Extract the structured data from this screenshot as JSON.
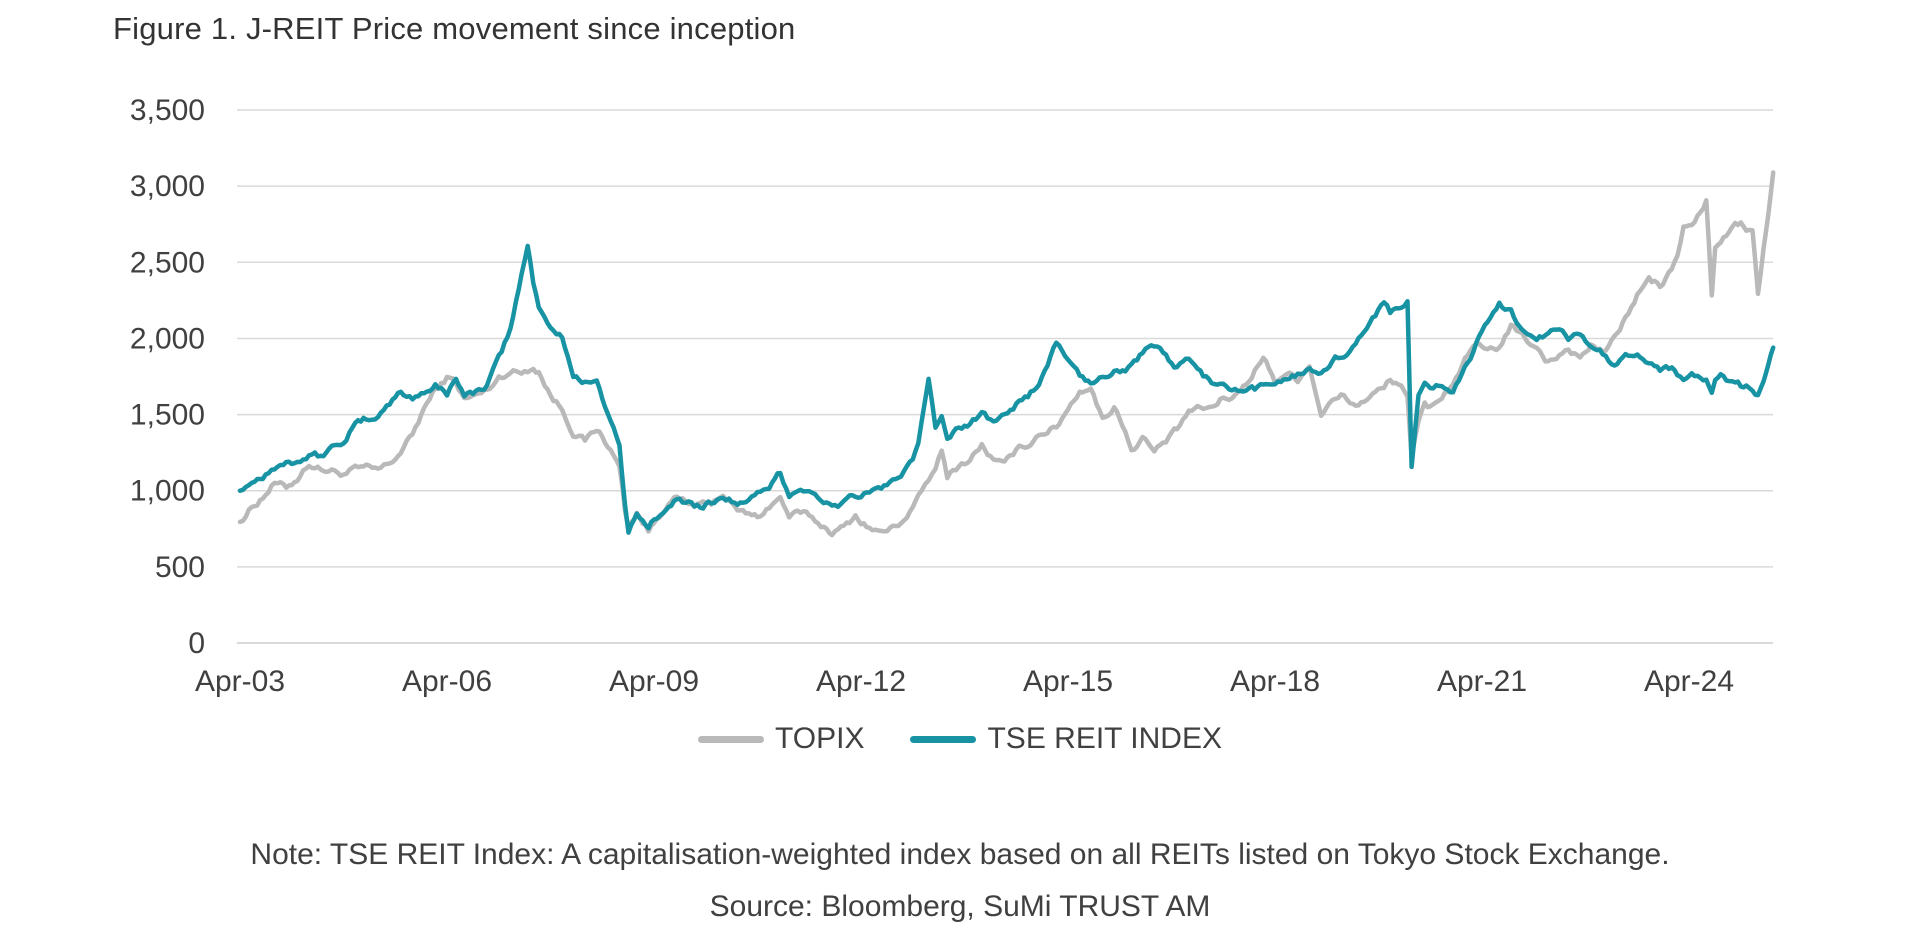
{
  "figure": {
    "title": "Figure 1. J-REIT Price movement since inception",
    "note": "Note: TSE REIT Index: A capitalisation-weighted index based on all REITs listed on Tokyo Stock Exchange.",
    "source": "Source: Bloomberg, SuMi TRUST AM"
  },
  "colors": {
    "grid": "#d9d9d9",
    "axis_text": "#404040",
    "title_text": "#333333",
    "background": "#ffffff"
  },
  "chart_data": {
    "type": "line",
    "title": "Figure 1. J-REIT Price movement since inception",
    "xlabel": "",
    "ylabel": "",
    "grid": "horizontal",
    "legend_position": "bottom",
    "ylim": [
      0,
      3500
    ],
    "xlim": [
      2003.25,
      2025.5
    ],
    "y_ticks": [
      {
        "label": "0",
        "v": 0
      },
      {
        "label": "500",
        "v": 500
      },
      {
        "label": "1,000",
        "v": 1000
      },
      {
        "label": "1,500",
        "v": 1500
      },
      {
        "label": "2,000",
        "v": 2000
      },
      {
        "label": "2,500",
        "v": 2500
      },
      {
        "label": "3,000",
        "v": 3000
      },
      {
        "label": "3,500",
        "v": 3500
      }
    ],
    "x_ticks": [
      {
        "label": "Apr-03",
        "t": 2003.25
      },
      {
        "label": "Apr-06",
        "t": 2006.25
      },
      {
        "label": "Apr-09",
        "t": 2009.25
      },
      {
        "label": "Apr-12",
        "t": 2012.25
      },
      {
        "label": "Apr-15",
        "t": 2015.25
      },
      {
        "label": "Apr-18",
        "t": 2018.25
      },
      {
        "label": "Apr-21",
        "t": 2021.25
      },
      {
        "label": "Apr-24",
        "t": 2024.25
      }
    ],
    "x": [
      2003.25,
      2003.42,
      2003.58,
      2003.75,
      2003.92,
      2004.08,
      2004.25,
      2004.42,
      2004.58,
      2004.75,
      2004.92,
      2005.08,
      2005.25,
      2005.42,
      2005.58,
      2005.75,
      2005.92,
      2006.08,
      2006.25,
      2006.38,
      2006.5,
      2006.67,
      2006.83,
      2007.0,
      2007.17,
      2007.33,
      2007.42,
      2007.5,
      2007.58,
      2007.75,
      2007.92,
      2008.08,
      2008.25,
      2008.42,
      2008.58,
      2008.75,
      2008.83,
      2008.88,
      2009.0,
      2009.17,
      2009.25,
      2009.42,
      2009.58,
      2009.75,
      2009.92,
      2010.08,
      2010.25,
      2010.42,
      2010.58,
      2010.75,
      2010.92,
      2011.08,
      2011.21,
      2011.33,
      2011.5,
      2011.67,
      2011.83,
      2012.0,
      2012.17,
      2012.33,
      2012.5,
      2012.67,
      2012.83,
      2013.0,
      2013.08,
      2013.23,
      2013.33,
      2013.42,
      2013.5,
      2013.67,
      2013.83,
      2014.0,
      2014.17,
      2014.33,
      2014.5,
      2014.67,
      2014.83,
      2015.08,
      2015.25,
      2015.42,
      2015.58,
      2015.75,
      2015.92,
      2016.08,
      2016.17,
      2016.33,
      2016.5,
      2016.67,
      2016.83,
      2017.0,
      2017.17,
      2017.33,
      2017.5,
      2017.67,
      2017.83,
      2018.0,
      2018.08,
      2018.25,
      2018.42,
      2018.58,
      2018.75,
      2018.92,
      2019.08,
      2019.25,
      2019.42,
      2019.58,
      2019.83,
      2019.92,
      2020.08,
      2020.17,
      2020.23,
      2020.33,
      2020.42,
      2020.5,
      2020.67,
      2020.83,
      2021.0,
      2021.17,
      2021.33,
      2021.5,
      2021.67,
      2021.83,
      2022.0,
      2022.17,
      2022.33,
      2022.5,
      2022.67,
      2022.83,
      2023.0,
      2023.17,
      2023.33,
      2023.5,
      2023.67,
      2023.83,
      2024.0,
      2024.08,
      2024.17,
      2024.25,
      2024.33,
      2024.5,
      2024.58,
      2024.63,
      2024.75,
      2024.83,
      2024.92,
      2025.0,
      2025.08,
      2025.17,
      2025.25,
      2025.33,
      2025.4,
      2025.47
    ],
    "series": [
      {
        "name": "TOPIX",
        "color": "#b9b9b9",
        "values": [
          795,
          890,
          960,
          1050,
          1020,
          1080,
          1180,
          1140,
          1130,
          1110,
          1140,
          1145,
          1135,
          1175,
          1255,
          1365,
          1545,
          1660,
          1740,
          1715,
          1600,
          1625,
          1655,
          1745,
          1785,
          1775,
          1795,
          1810,
          1785,
          1625,
          1535,
          1385,
          1325,
          1405,
          1305,
          1155,
          875,
          755,
          860,
          735,
          785,
          905,
          950,
          910,
          900,
          915,
          985,
          880,
          850,
          825,
          900,
          950,
          830,
          850,
          835,
          775,
          730,
          755,
          835,
          770,
          725,
          745,
          795,
          885,
          945,
          1075,
          1135,
          1255,
          1095,
          1165,
          1205,
          1300,
          1200,
          1165,
          1265,
          1305,
          1375,
          1415,
          1545,
          1655,
          1685,
          1465,
          1555,
          1405,
          1255,
          1355,
          1255,
          1325,
          1395,
          1520,
          1535,
          1545,
          1605,
          1625,
          1705,
          1825,
          1875,
          1725,
          1775,
          1735,
          1825,
          1505,
          1585,
          1625,
          1555,
          1605,
          1675,
          1725,
          1705,
          1605,
          1205,
          1435,
          1565,
          1545,
          1625,
          1705,
          1855,
          1955,
          1905,
          1945,
          2075,
          2015,
          1955,
          1855,
          1885,
          1935,
          1875,
          1955,
          1905,
          1995,
          2135,
          2285,
          2385,
          2345,
          2445,
          2545,
          2725,
          2745,
          2755,
          2905,
          2285,
          2605,
          2655,
          2705,
          2745,
          2745,
          2695,
          2705,
          2295,
          2605,
          2835,
          3090
        ]
      },
      {
        "name": "TSE REIT INDEX",
        "color": "#1793a4",
        "values": [
          1000,
          1060,
          1100,
          1160,
          1190,
          1195,
          1240,
          1230,
          1280,
          1330,
          1430,
          1465,
          1500,
          1575,
          1645,
          1605,
          1655,
          1690,
          1630,
          1755,
          1625,
          1645,
          1705,
          1860,
          2060,
          2420,
          2610,
          2350,
          2210,
          2060,
          2010,
          1760,
          1705,
          1755,
          1505,
          1305,
          905,
          715,
          825,
          755,
          805,
          905,
          950,
          925,
          885,
          925,
          955,
          935,
          905,
          965,
          1005,
          1120,
          960,
          1025,
          1005,
          955,
          885,
          925,
          965,
          985,
          1005,
          1055,
          1105,
          1185,
          1305,
          1700,
          1405,
          1505,
          1355,
          1405,
          1435,
          1515,
          1455,
          1525,
          1575,
          1605,
          1705,
          1975,
          1855,
          1755,
          1705,
          1755,
          1785,
          1805,
          1855,
          1905,
          1950,
          1875,
          1805,
          1855,
          1785,
          1705,
          1675,
          1655,
          1635,
          1665,
          1685,
          1705,
          1755,
          1765,
          1805,
          1775,
          1855,
          1905,
          1955,
          2055,
          2255,
          2185,
          2205,
          2245,
          1145,
          1605,
          1685,
          1655,
          1705,
          1645,
          1795,
          1965,
          2085,
          2220,
          2185,
          2065,
          2005,
          2015,
          2065,
          2005,
          2025,
          1955,
          1895,
          1805,
          1885,
          1875,
          1855,
          1795,
          1805,
          1755,
          1745,
          1785,
          1765,
          1725,
          1655,
          1725,
          1755,
          1725,
          1705,
          1685,
          1705,
          1665,
          1635,
          1705,
          1805,
          1940
        ]
      }
    ]
  }
}
